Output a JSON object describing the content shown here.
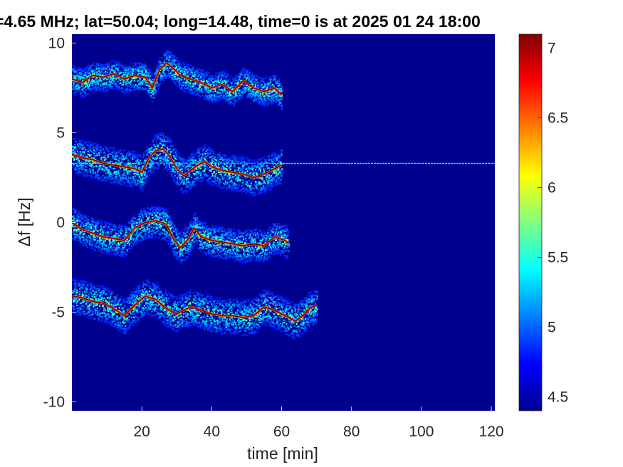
{
  "chart_data": {
    "type": "heatmap",
    "title": "=4.65 MHz;  lat=50.04; long=14.48, time=0 is at 2025 01 24 18:00",
    "xlabel": "time [min]",
    "ylabel": "Δf [Hz]",
    "xlim": [
      0,
      121
    ],
    "ylim": [
      -10.5,
      10.5
    ],
    "xticks": [
      20,
      40,
      60,
      80,
      100,
      120
    ],
    "yticks": [
      -10,
      -5,
      0,
      5,
      10
    ],
    "colorbar": {
      "colormap": "jet",
      "clim": [
        4.4,
        7.1
      ],
      "ticks": [
        4.5,
        5,
        5.5,
        6,
        6.5,
        7
      ]
    },
    "background_value": 4.45,
    "constant_line": {
      "y": 3.3,
      "x_range": [
        0,
        121
      ],
      "value": 5.4
    },
    "series": [
      {
        "x": [
          0,
          3,
          6,
          9,
          12,
          15,
          18,
          21,
          23,
          25,
          27,
          29,
          31,
          34,
          37,
          40,
          43,
          46,
          49,
          52,
          55,
          58,
          60
        ],
        "y": [
          8.0,
          7.8,
          8.2,
          8.1,
          8.3,
          8.0,
          8.2,
          8.1,
          7.5,
          8.5,
          8.9,
          8.6,
          8.2,
          8.0,
          7.8,
          7.5,
          7.7,
          7.3,
          7.9,
          7.5,
          7.3,
          7.5,
          7.1
        ],
        "spread": 0.8
      },
      {
        "x": [
          0,
          3,
          6,
          9,
          12,
          15,
          18,
          20,
          22,
          24,
          26,
          28,
          30,
          32,
          34,
          36,
          38,
          40,
          43,
          46,
          49,
          52,
          55,
          58,
          60
        ],
        "y": [
          3.8,
          3.6,
          3.5,
          3.3,
          3.2,
          3.1,
          3.0,
          2.8,
          3.6,
          4.0,
          4.1,
          3.7,
          3.0,
          2.6,
          2.9,
          3.2,
          3.4,
          3.1,
          2.9,
          2.8,
          2.7,
          2.5,
          2.7,
          3.0,
          3.2
        ],
        "spread": 1.0
      },
      {
        "x": [
          0,
          3,
          6,
          9,
          12,
          15,
          18,
          21,
          24,
          27,
          29,
          31,
          33,
          35,
          37,
          40,
          43,
          46,
          49,
          52,
          55,
          58,
          61,
          62
        ],
        "y": [
          0.0,
          -0.4,
          -0.6,
          -0.8,
          -0.9,
          -1.0,
          -0.3,
          0.0,
          0.1,
          -0.1,
          -0.9,
          -1.4,
          -1.0,
          -0.3,
          -0.8,
          -1.0,
          -1.1,
          -1.2,
          -1.3,
          -1.2,
          -1.3,
          -0.8,
          -1.0,
          -1.2
        ],
        "spread": 0.9
      },
      {
        "x": [
          0,
          3,
          6,
          9,
          12,
          15,
          18,
          21,
          24,
          27,
          30,
          32,
          34,
          37,
          40,
          43,
          46,
          49,
          52,
          55,
          58,
          62,
          64,
          66,
          68,
          70
        ],
        "y": [
          -4.1,
          -4.2,
          -4.4,
          -4.5,
          -4.8,
          -5.2,
          -4.6,
          -4.1,
          -4.3,
          -4.8,
          -5.1,
          -4.9,
          -4.7,
          -4.9,
          -5.1,
          -5.2,
          -5.2,
          -5.3,
          -5.2,
          -4.7,
          -4.9,
          -5.3,
          -5.5,
          -5.2,
          -4.8,
          -4.6
        ],
        "spread": 1.0
      }
    ]
  }
}
